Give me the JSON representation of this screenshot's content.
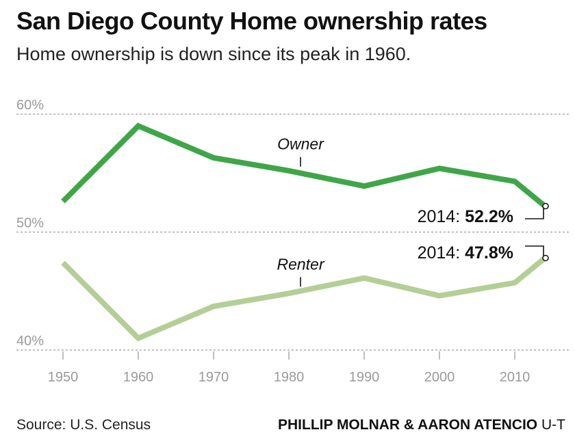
{
  "header": {
    "title": "San Diego County Home ownership rates",
    "subtitle": "Home ownership is down since its peak in 1960."
  },
  "footer": {
    "source": "Source: U.S. Census",
    "credit_names": "PHILLIP MOLNAR & AARON ATENCIO",
    "credit_org": "U-T"
  },
  "colors": {
    "owner": "#3fa648",
    "renter": "#b4cf96",
    "grid": "#9a9a9a",
    "tick_text": "#9a9a9a"
  },
  "chart_data": {
    "type": "line",
    "x": [
      1950,
      1960,
      1970,
      1980,
      1990,
      2000,
      2010,
      2014
    ],
    "series": [
      {
        "name": "Owner",
        "values": [
          52.6,
          59.0,
          56.3,
          55.2,
          53.9,
          55.4,
          54.3,
          52.2
        ]
      },
      {
        "name": "Renter",
        "values": [
          47.4,
          41.0,
          43.7,
          44.8,
          46.1,
          44.6,
          45.7,
          47.8
        ]
      }
    ],
    "xticks": [
      "1950",
      "1960",
      "1970",
      "1980",
      "1990",
      "2000",
      "2010"
    ],
    "yticks": [
      "60%",
      "50%",
      "40%"
    ],
    "ylim": [
      40,
      60
    ],
    "annotations": [
      {
        "prefix": "2014: ",
        "value": "52.2%"
      },
      {
        "prefix": "2014: ",
        "value": "47.8%"
      }
    ],
    "grid": true,
    "legend": "none"
  }
}
